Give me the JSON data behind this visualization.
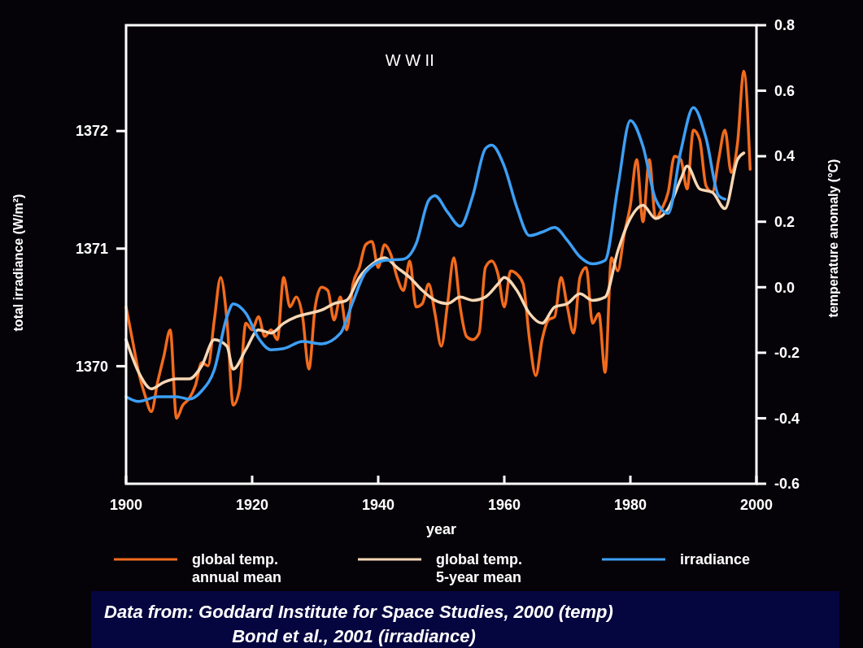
{
  "chart_data": {
    "type": "line",
    "xlabel": "year",
    "ylabel": "total irradiance (W/m²)",
    "y2label": "temperature anomaly (°C)",
    "xlim": [
      1900,
      2000
    ],
    "xticks": [
      1900,
      1920,
      1940,
      1960,
      1980,
      2000
    ],
    "ylim": [
      1369.0,
      1372.9
    ],
    "yticks": [
      1370,
      1371,
      1372
    ],
    "y2lim": [
      -0.6,
      0.8
    ],
    "y2ticks": [
      -0.6,
      -0.4,
      -0.2,
      {
        "value": 0,
        "label": "0.0"
      },
      0.2,
      0.4,
      0.6,
      0.8
    ],
    "grid": false,
    "legend": "bottom",
    "line_style": "solid",
    "marker": "none",
    "annotations": [
      "W W II",
      "Data from: Goddard Institute for Space Studies, 2000 (temp)",
      "Bond et al., 2001 (irradiance)"
    ],
    "series": [
      {
        "name": "global temp. annual mean",
        "color": "#f26b1d",
        "axis": "y2",
        "x": [
          1900,
          1901,
          1902,
          1903,
          1904,
          1905,
          1906,
          1907,
          1908,
          1909,
          1910,
          1911,
          1912,
          1913,
          1914,
          1915,
          1916,
          1917,
          1918,
          1919,
          1920,
          1921,
          1922,
          1923,
          1924,
          1925,
          1926,
          1927,
          1928,
          1929,
          1930,
          1931,
          1932,
          1933,
          1934,
          1935,
          1936,
          1937,
          1938,
          1939,
          1940,
          1941,
          1942,
          1943,
          1944,
          1945,
          1946,
          1947,
          1948,
          1949,
          1950,
          1951,
          1952,
          1953,
          1954,
          1955,
          1956,
          1957,
          1958,
          1959,
          1960,
          1961,
          1962,
          1963,
          1964,
          1965,
          1966,
          1967,
          1968,
          1969,
          1970,
          1971,
          1972,
          1973,
          1974,
          1975,
          1976,
          1977,
          1978,
          1979,
          1980,
          1981,
          1982,
          1983,
          1984,
          1985,
          1986,
          1987,
          1988,
          1989,
          1990,
          1991,
          1992,
          1993,
          1994,
          1995,
          1996,
          1997,
          1998,
          1999
        ],
        "values": [
          -0.06,
          -0.16,
          -0.26,
          -0.33,
          -0.38,
          -0.29,
          -0.21,
          -0.13,
          -0.4,
          -0.36,
          -0.34,
          -0.3,
          -0.23,
          -0.24,
          -0.1,
          0.03,
          -0.1,
          -0.36,
          -0.31,
          -0.11,
          -0.13,
          -0.09,
          -0.15,
          -0.13,
          -0.16,
          0.03,
          -0.06,
          -0.03,
          -0.09,
          -0.25,
          -0.06,
          0.0,
          -0.01,
          -0.1,
          -0.03,
          -0.13,
          0.01,
          0.06,
          0.13,
          0.14,
          0.06,
          0.13,
          0.1,
          0.03,
          -0.01,
          0.08,
          -0.06,
          -0.05,
          0.01,
          -0.08,
          -0.18,
          -0.05,
          0.09,
          -0.06,
          -0.15,
          -0.16,
          -0.14,
          0.06,
          0.08,
          0.04,
          -0.06,
          0.05,
          0.04,
          0.01,
          -0.16,
          -0.27,
          -0.16,
          -0.1,
          -0.09,
          0.03,
          -0.06,
          -0.14,
          0.03,
          0.06,
          -0.11,
          -0.08,
          -0.26,
          0.09,
          0.05,
          0.16,
          0.25,
          0.39,
          0.2,
          0.39,
          0.21,
          0.24,
          0.29,
          0.4,
          0.39,
          0.3,
          0.48,
          0.45,
          0.31,
          0.29,
          0.39,
          0.48,
          0.35,
          0.44,
          0.66,
          0.36
        ]
      },
      {
        "name": "global temp. 5-year mean",
        "color": "#f7d7b5",
        "axis": "y2",
        "x": [
          1900,
          1902,
          1904,
          1906,
          1908,
          1910,
          1912,
          1914,
          1916,
          1917,
          1919,
          1921,
          1923,
          1925,
          1927,
          1929,
          1931,
          1933,
          1935,
          1937,
          1939,
          1941,
          1943,
          1945,
          1947,
          1949,
          1951,
          1953,
          1955,
          1957,
          1959,
          1960,
          1962,
          1964,
          1966,
          1968,
          1970,
          1972,
          1974,
          1976,
          1978,
          1980,
          1982,
          1984,
          1986,
          1988,
          1989,
          1991,
          1993,
          1995,
          1997,
          1998
        ],
        "values": [
          -0.16,
          -0.26,
          -0.31,
          -0.29,
          -0.28,
          -0.28,
          -0.24,
          -0.16,
          -0.18,
          -0.25,
          -0.19,
          -0.13,
          -0.14,
          -0.11,
          -0.09,
          -0.08,
          -0.07,
          -0.05,
          -0.04,
          0.03,
          0.07,
          0.09,
          0.06,
          0.03,
          -0.01,
          -0.04,
          -0.05,
          -0.03,
          -0.04,
          -0.03,
          0.01,
          0.03,
          -0.01,
          -0.08,
          -0.11,
          -0.06,
          -0.05,
          -0.02,
          -0.04,
          -0.03,
          0.11,
          0.21,
          0.25,
          0.21,
          0.24,
          0.33,
          0.37,
          0.3,
          0.29,
          0.24,
          0.39,
          0.41
        ]
      },
      {
        "name": "irradiance",
        "color": "#3d9ff5",
        "x": [
          1900,
          1902,
          1905,
          1908,
          1910,
          1912,
          1914,
          1916,
          1917,
          1919,
          1921,
          1923,
          1925,
          1928,
          1931,
          1934,
          1936,
          1938,
          1941,
          1944,
          1946,
          1948,
          1949,
          1951,
          1953,
          1955,
          1957,
          1958,
          1960,
          1962,
          1964,
          1966,
          1968,
          1970,
          1972,
          1974,
          1976,
          1978,
          1980,
          1982,
          1984,
          1986,
          1988,
          1990,
          1992,
          1994,
          1995
        ],
        "values": [
          1369.74,
          1369.7,
          1369.74,
          1369.74,
          1369.72,
          1369.79,
          1369.97,
          1370.42,
          1370.53,
          1370.45,
          1370.24,
          1370.14,
          1370.15,
          1370.21,
          1370.19,
          1370.28,
          1370.55,
          1370.8,
          1370.9,
          1370.91,
          1371.04,
          1371.41,
          1371.45,
          1371.31,
          1371.19,
          1371.45,
          1371.85,
          1371.88,
          1371.7,
          1371.35,
          1371.11,
          1371.14,
          1371.18,
          1371.07,
          1370.93,
          1370.87,
          1370.9,
          1371.52,
          1372.09,
          1371.87,
          1371.42,
          1371.3,
          1371.83,
          1372.2,
          1371.94,
          1371.45,
          1371.42
        ]
      }
    ]
  }
}
